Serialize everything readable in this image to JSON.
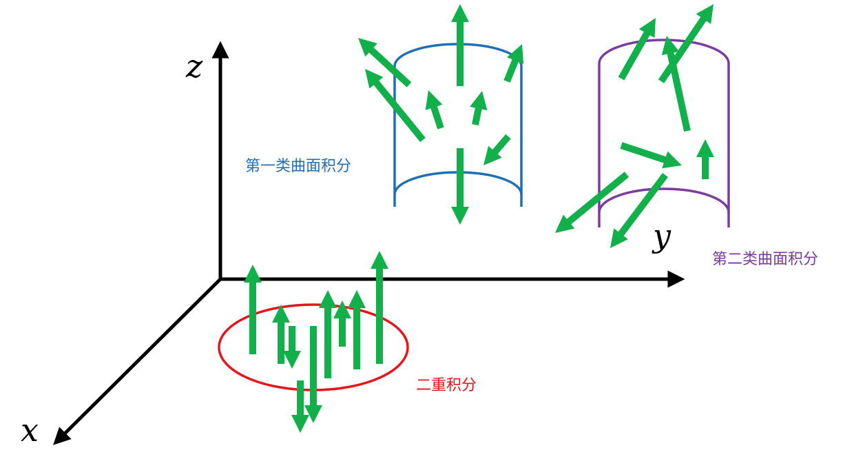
{
  "axes": {
    "x_label": "x",
    "y_label": "y",
    "z_label": "z",
    "color": "#000000"
  },
  "regions": {
    "double_integral": {
      "label": "二重积分",
      "color": "#e8141b"
    },
    "surface_integral_first_kind": {
      "label": "第一类曲面积分",
      "color": "#1e6fb5"
    },
    "surface_integral_second_kind": {
      "label": "第二类曲面积分",
      "color": "#7a3aa0"
    }
  },
  "arrow_color": "#12b04a"
}
